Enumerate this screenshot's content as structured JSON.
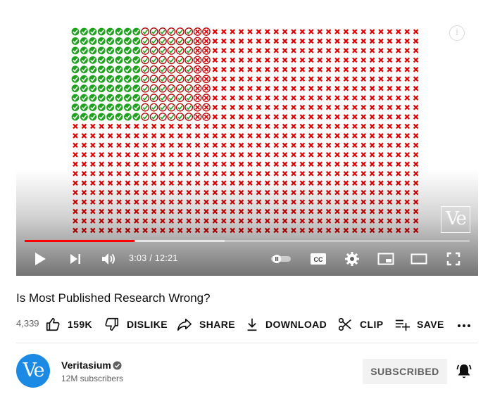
{
  "player": {
    "current_time": "3:03",
    "separator": "/",
    "duration": "12:21",
    "played_fraction": 0.247,
    "loaded_fraction": 0.45,
    "info_icon": "info-icon",
    "watermark_text": "Ve",
    "grid": {
      "columns": 40,
      "rows": 22,
      "true_positive_symbol": "green-check-circle",
      "false_positive_symbol": "red-check-circle",
      "false_negative_symbol": "red-x-circle",
      "true_negative_symbol": "red-x",
      "colors": {
        "green": "#1fa31f",
        "red": "#e00000",
        "dark_red": "#b50000"
      }
    },
    "controls": [
      "play-icon",
      "next-icon",
      "volume-icon",
      "autoplay-toggle-icon",
      "captions-icon",
      "settings-icon",
      "miniplayer-icon",
      "theater-icon",
      "fullscreen-icon"
    ]
  },
  "video": {
    "title": "Is Most Published Research Wrong?"
  },
  "actions": {
    "view_count": "4,339",
    "like_count": "159K",
    "dislike_label": "DISLIKE",
    "share_label": "SHARE",
    "download_label": "DOWNLOAD",
    "clip_label": "CLIP",
    "save_label": "SAVE",
    "more_icon": "more-horizontal-icon"
  },
  "channel": {
    "avatar_text": "Ve",
    "name": "Veritasium",
    "verified_icon": "verified-check-icon",
    "subscribers": "12M subscribers",
    "subscribe_label": "SUBSCRIBED",
    "bell_icon": "notification-bell-icon",
    "avatar_color": "#1a8ae5"
  }
}
